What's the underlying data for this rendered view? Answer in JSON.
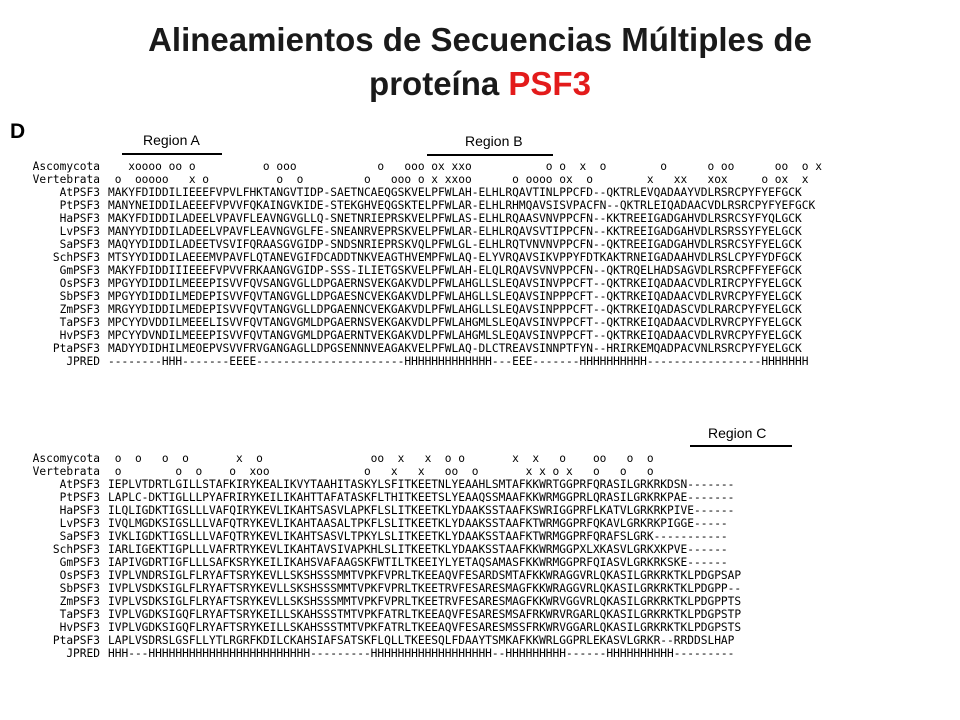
{
  "title": {
    "main": "Alineamientos de Secuencias Múltiples de",
    "line2": "proteína ",
    "accent": "PSF3"
  },
  "panel_label": "D",
  "regions": {
    "a": "Region A",
    "b": "Region B",
    "c": "Region C"
  },
  "block1": {
    "rows": [
      {
        "label": "Ascomycota",
        "seq": "   xoooo oo o          o ooo            o   ooo ox xxo           o o  x  o        o      o oo      oo  o x"
      },
      {
        "label": "Vertebrata",
        "seq": " o  ooooo   x o          o  o         o   ooo o x xxoo      o oooo ox  o        x   xx   xox     o ox  x"
      },
      {
        "label": "AtPSF3",
        "seq": "MAKYFDIDDILIEEEFVPVLFHKTANGVTIDP-SAETNCAEQGSKVELPFWLAH-ELHLRQAVTINLPPCFD--QKTRLEVQADAAYVDLRSRCPYFYEFGCK"
      },
      {
        "label": "PtPSF3",
        "seq": "MANYNEIDDILAEEEFVPVVFQKAINGVKIDE-STEKGHVEQGSKTELPFWLAR-ELHLRHMQAVSISVPACFN--QKTRLEIQADAACVDLRSRCPYFYEFGCK"
      },
      {
        "label": "HaPSF3",
        "seq": "MAKYFDIDDILADEELVPAVFLEAVNGVGLLQ-SNETNRIEPRSKVELPFWLAS-ELHLRQAASVNVPPCFN--KKTREEIGADGAHVDLRSRCSYFYQLGCK"
      },
      {
        "label": "LvPSF3",
        "seq": "MANYYDIDDILADEELVPAVFLEAVNGVGLFE-SNEANRVEPRSKVELPFWLAR-ELHLRQAVSVTIPPCFN--KKTREEIGADGAHVDLRSRSSYFYELGCK"
      },
      {
        "label": "SaPSF3",
        "seq": "MAQYYDIDDILADEETVSVIFQRAASGVGIDP-SNDSNRIEPRSKVQLPFWLGL-ELHLRQTVNVNVPPCFN--QKTREEIGADGAHVDLRSRCSYFYELGCK"
      },
      {
        "label": "SchPSF3",
        "seq": "MTSYYDIDDILAEEEMVPAVFLQTANEVGIFDCADDTNKVEAGTHVEMPFWLAQ-ELYVRQAVSIKVPPYFDTKAKTRNEIGADAAHVDLRSLCPYFYDFGCK"
      },
      {
        "label": "GmPSF3",
        "seq": "MAKYFDIDDIIIEEEFVPVVFRKAANGVGIDP-SSS-ILIETGSKVELPFWLAH-ELQLRQAVSVNVPPCFN--QKTRQELHADSAGVDLRSRCPFFYEFGCK"
      },
      {
        "label": "OsPSF3",
        "seq": "MPGYYDIDDILMEEEPISVVFQVSANGVGLLDPGAERNSVEKGAKVDLPFWLAHGLLSLEQAVSINVPPCFT--QKTRKEIQADAACVDLRIRCPYFYELGCK"
      },
      {
        "label": "SbPSF3",
        "seq": "MPGYYDIDDILMEDEPISVVFQVTANGVGLLDPGAESNCVEKGAKVDLPFWLAHGLLSLEQAVSINPPPCFT--QKTRKEIQADAACVDLRVRCPYFYELGCK"
      },
      {
        "label": "ZmPSF3",
        "seq": "MRGYYDIDDILMEDEPISVVFQVTANGVGLLDPGAENNCVEKGAKVDLPFWLAHGLLSLEQAVSINPPPCFT--QKTRKEIQADASCVDLRARCPYFYELGCK"
      },
      {
        "label": "TaPSF3",
        "seq": "MPCYYDVDDILMEEELISVVFQVTANGVGMLDPGAERNSVEKGAKVDLPFWLAHGMLSLEQAVSINVPPCFT--QKTRKEIQADAACVDLRVRCPYFYELGCK"
      },
      {
        "label": "HvPSF3",
        "seq": "MPCYYDVNDILMEEEPISVVFQVTANGVGMLDPGAERNTVEKGAKVDLPFWLAHGMLSLEQAVSINVPPCFT--QKTRKEIQADAACVDLRVRCPYFYELGCK"
      },
      {
        "label": "PtaPSF3",
        "seq": "MADYYDIDHILMEOEPVSVVFRVGANGAGLLDPGSENNNVEAGAKVELPFWLAQ-DLCTREAVSINNPTFYN--HRIRKEMQADPACVNLRSRCPYFYELGCK"
      },
      {
        "label": "JPRED",
        "seq": "--------HHH-------EEEE----------------------HHHHHHHHHHHHH---EEE-------HHHHHHHHHH-----------------HHHHHHH"
      }
    ]
  },
  "block2": {
    "rows": [
      {
        "label": "Ascomycota",
        "seq": " o  o   o  o       x  o                oo  x   x  o o       x  x   o    oo   o  o"
      },
      {
        "label": "Vertebrata",
        "seq": " o        o  o    o  xoo              o   x   x   oo  o       x x o x   o   o   o"
      },
      {
        "label": "AtPSF3",
        "seq": "IEPLVTDRTLGILLSTAFKIRYKEALIKVYTAAHITASKYLSFITKEETNLYEAAHLSMTAFKKWRTGGPRFQRASILGRKRKDSN-------"
      },
      {
        "label": "PtPSF3",
        "seq": "LAPLC-DKTIGLLLPYAFRIRYKEILIKAHTTAFATASKFLTHITKEETSLYEAAQSSMAAFKKWRMGGPRLQRASILGRKRKPAE-------"
      },
      {
        "label": "HaPSF3",
        "seq": "ILQLIGDKTIGSLLLVAFQIRYKEVLIKAHTSASVLAPKFLSLITKEETKLYDAAKSSTAAFKSWRIGGPRFLKATVLGRKRKPIVE------"
      },
      {
        "label": "LvPSF3",
        "seq": "IVQLMGDKSIGSLLLVAFQTRYKEVLIKAHTAASALTPKFLSLITKEETKLYDAAKSSTAAFKTWRMGGPRFQKAVLGRKRKPIGGE-----"
      },
      {
        "label": "SaPSF3",
        "seq": "IVKLIGDKTIGSLLLVAFQTRYKEVLIKAHTSASVLTPKYLSLITKEETKLYDAAKSSTAAFKTWRMGGPRFQRAFSLGRK-----------"
      },
      {
        "label": "SchPSF3",
        "seq": "IARLIGEKTIGPLLLVAFRTRYKEVLIKAHTAVSIVAPKHLSLITKEETKLYDAAKSSTAAFKKWRMGGPXLXKASVLGRKXKPVE------"
      },
      {
        "label": "GmPSF3",
        "seq": "IAPIVGDRTIGFLLLSAFKSRYKEILIKAHSVAFAAGSKFWTILTKEEIYLYETAQSAMASFKKWRMGGPRFQIASVLGRKRKSKE------"
      },
      {
        "label": "OsPSF3",
        "seq": "IVPLVNDRSIGLFLRYAFTSRYKEVLLSKSHSSSMMTVPKFVPRLTKEEAQVFESARDSMTAFKKWRAGGVRLQKASILGRKRKTKLPDGPSAP"
      },
      {
        "label": "SbPSF3",
        "seq": "IVPLVSDKSIGLFLRYAFTSRYKEVLLSKSHSSSMMTVPKFVPRLTKEETRVFESARESMAGFKKWRAGGVRLQKASILGRKRKTKLPDGPP--"
      },
      {
        "label": "ZmPSF3",
        "seq": "IVPLVSDKSIGLFLRYAFTSRYKEVLLSKSHSSSMMTVPKFVPRLTKEETRVFESARESMAGFKKWRVGGVRLQKASILGRKRKTKLPDGPPTS"
      },
      {
        "label": "TaPSF3",
        "seq": "IVPLVGDKSIGQFLRYAFTSRYKEILLSKAHSSSTMTVPKFATRLTKEEAQVFESARESMSAFRKWRVRGARLQKASILGRKRKTKLPDGPSTP"
      },
      {
        "label": "HvPSF3",
        "seq": "IVPLVGDKSIGQFLRYAFTSRYKEILLSKAHSSSTMTVPKFATRLTKEEAQVFESARESMSSFRKWRVGGARLQKASILGRKRKTKLPDGPSTS"
      },
      {
        "label": "PtaPSF3",
        "seq": "LAPLVSDRSLGSFLLYTLRGRFKDILCKAHSIAFSATSKFLQLLTKEESQLFDAAYTSMKAFKKWRLGGPRLEKASVLGRKR--RRDDSLHAP"
      },
      {
        "label": "JPRED",
        "seq": "HHH---HHHHHHHHHHHHHHHHHHHHHHHH---------HHHHHHHHHHHHHHHHHH--HHHHHHHHH------HHHHHHHHHH---------"
      }
    ]
  }
}
